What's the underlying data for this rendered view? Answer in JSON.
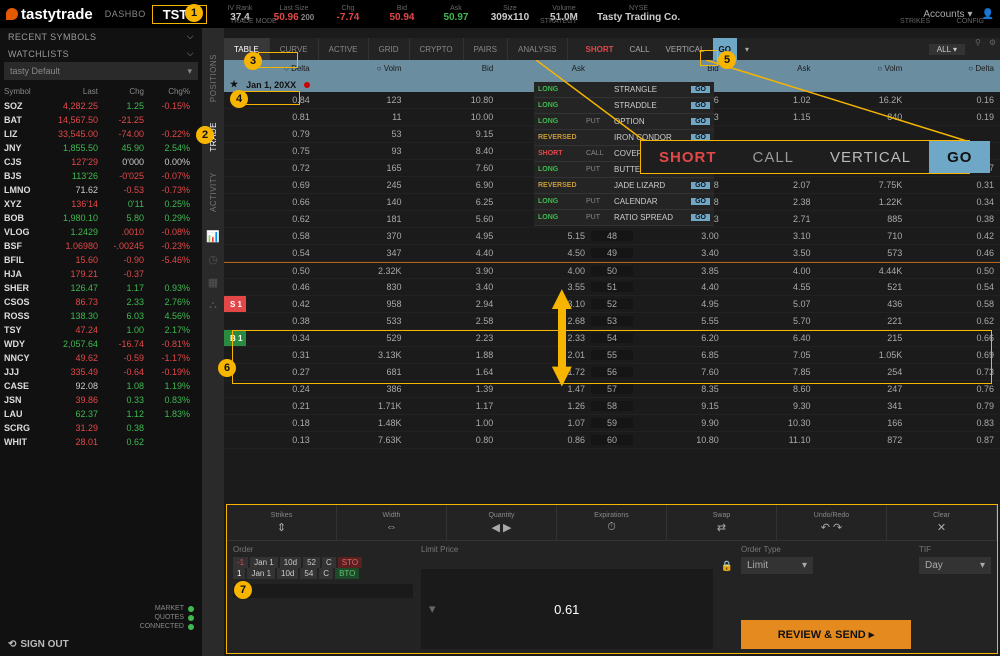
{
  "colors": {
    "accent": "#f7b500",
    "bg": "#0c0c0c",
    "red": "#e34848",
    "green": "#3fb950",
    "go": "#6fa7c7",
    "review": "#e58a1f"
  },
  "header": {
    "brand": "tastytrade",
    "nav": "DASHBO",
    "ticker": "TSTY",
    "quotes": [
      {
        "l": "IV Rank",
        "v": "37.4",
        "c": ""
      },
      {
        "l": "Last Size",
        "v": "50.96",
        "c": "red",
        "extra": "200"
      },
      {
        "l": "Chg",
        "v": "-7.74",
        "c": "red"
      },
      {
        "l": "Bid",
        "v": "50.94",
        "c": "red"
      },
      {
        "l": "Ask",
        "v": "50.97",
        "c": "green"
      },
      {
        "l": "Size",
        "v": "309x110",
        "c": ""
      },
      {
        "l": "Volume",
        "v": "51.0M",
        "c": ""
      },
      {
        "l": "NYSE",
        "v": "Tasty Trading Co.",
        "c": ""
      }
    ],
    "accounts": "Accounts"
  },
  "sidebar": {
    "recent": "RECENT SYMBOLS",
    "watchlists": "WATCHLISTS",
    "wl_select": "tasty Default",
    "cols": [
      "Symbol",
      "Last",
      "Chg",
      "Chg%"
    ],
    "rows": [
      {
        "s": "SOZ",
        "l": "4,282.25",
        "lc": "red",
        "c": "1.25",
        "cc": "green",
        "p": "-0.15%",
        "pc": "red"
      },
      {
        "s": "BAT",
        "l": "14,567.50",
        "lc": "red",
        "c": "-21.25",
        "cc": "red",
        "p": "",
        "pc": ""
      },
      {
        "s": "LIZ",
        "l": "33,545.00",
        "lc": "red",
        "c": "-74.00",
        "cc": "red",
        "p": "-0.22%",
        "pc": "red"
      },
      {
        "s": "JNY",
        "l": "1,855.50",
        "lc": "green",
        "c": "45.90",
        "cc": "green",
        "p": "2.54%",
        "pc": "green"
      },
      {
        "s": "CJS",
        "l": "127'29",
        "lc": "red",
        "c": "0'000",
        "cc": "",
        "p": "0.00%",
        "pc": ""
      },
      {
        "s": "BJS",
        "l": "113'26",
        "lc": "green",
        "c": "-0'025",
        "cc": "red",
        "p": "-0.07%",
        "pc": "red"
      },
      {
        "s": "LMNO",
        "l": "71.62",
        "lc": "",
        "c": "-0.53",
        "cc": "red",
        "p": "-0.73%",
        "pc": "red"
      },
      {
        "s": "XYZ",
        "l": "136'14",
        "lc": "red",
        "c": "0'11",
        "cc": "green",
        "p": "0.25%",
        "pc": "green"
      },
      {
        "s": "BOB",
        "l": "1,980.10",
        "lc": "green",
        "c": "5.80",
        "cc": "green",
        "p": "0.29%",
        "pc": "green"
      },
      {
        "s": "VLOG",
        "l": "1.2429",
        "lc": "green",
        "c": ".0010",
        "cc": "red",
        "p": "-0.08%",
        "pc": "red"
      },
      {
        "s": "BSF",
        "l": "1.06980",
        "lc": "red",
        "c": "-.00245",
        "cc": "red",
        "p": "-0.23%",
        "pc": "red"
      },
      {
        "s": "BFIL",
        "l": "15.60",
        "lc": "red",
        "c": "-0.90",
        "cc": "red",
        "p": "-5.46%",
        "pc": "red"
      },
      {
        "s": "HJA",
        "l": "179.21",
        "lc": "red",
        "c": "-0.37",
        "cc": "red",
        "p": "",
        "pc": ""
      },
      {
        "s": "SHER",
        "l": "126.47",
        "lc": "green",
        "c": "1.17",
        "cc": "green",
        "p": "0.93%",
        "pc": "green"
      },
      {
        "s": "CSOS",
        "l": "86.73",
        "lc": "red",
        "c": "2.33",
        "cc": "green",
        "p": "2.76%",
        "pc": "green"
      },
      {
        "s": "ROSS",
        "l": "138.30",
        "lc": "green",
        "c": "6.03",
        "cc": "green",
        "p": "4.56%",
        "pc": "green"
      },
      {
        "s": "TSY",
        "l": "47.24",
        "lc": "red",
        "c": "1.00",
        "cc": "green",
        "p": "2.17%",
        "pc": "green"
      },
      {
        "s": "WDY",
        "l": "2,057.64",
        "lc": "green",
        "c": "-16.74",
        "cc": "red",
        "p": "-0.81%",
        "pc": "red"
      },
      {
        "s": "NNCY",
        "l": "49.62",
        "lc": "red",
        "c": "-0.59",
        "cc": "red",
        "p": "-1.17%",
        "pc": "red"
      },
      {
        "s": "JJJ",
        "l": "335.49",
        "lc": "red",
        "c": "-0.64",
        "cc": "red",
        "p": "-0.19%",
        "pc": "red"
      },
      {
        "s": "CASE",
        "l": "92.08",
        "lc": "",
        "c": "1.08",
        "cc": "green",
        "p": "1.19%",
        "pc": "green"
      },
      {
        "s": "JSN",
        "l": "39.86",
        "lc": "red",
        "c": "0.33",
        "cc": "green",
        "p": "0.83%",
        "pc": "green"
      },
      {
        "s": "LAU",
        "l": "62.37",
        "lc": "green",
        "c": "1.12",
        "cc": "green",
        "p": "1.83%",
        "pc": "green"
      },
      {
        "s": "SCRG",
        "l": "31.29",
        "lc": "red",
        "c": "0.38",
        "cc": "green",
        "p": "",
        "pc": ""
      },
      {
        "s": "WHIT",
        "l": "28.01",
        "lc": "red",
        "c": "0.62",
        "cc": "green",
        "p": "",
        "pc": ""
      }
    ],
    "status": [
      "MARKET",
      "QUOTES",
      "CONNECTED"
    ],
    "signout": "SIGN OUT"
  },
  "rail": {
    "tabs": [
      "POSITIONS",
      "TRADE",
      "ACTIVITY"
    ],
    "active": 1
  },
  "modes": {
    "lbl": "TRADE MODE",
    "tabs": [
      "TABLE",
      "CURVE",
      "ACTIVE",
      "GRID",
      "CRYPTO",
      "PAIRS",
      "ANALYSIS"
    ],
    "sel": 0,
    "strat_lbl": "STRATEGY",
    "strat": [
      "SHORT",
      "CALL",
      "VERTICAL"
    ],
    "go": "GO",
    "strikes_lbl": "STRIKES",
    "strikes_val": "ALL",
    "config": "CONFIG"
  },
  "opt_head_left": [
    "○ Delta",
    "○ Volm",
    "Bid",
    "Ask"
  ],
  "opt_head_right": [
    "Bid",
    "Ask",
    "○ Volm",
    "○ Delta"
  ],
  "exp_date": "Jan 1, 20XX",
  "chain": [
    {
      "d": "0.84",
      "v": "123",
      "b": "10.80",
      "a": "",
      "k": "",
      "rb": "0.96",
      "ra": "1.02",
      "rv": "16.2K",
      "rd": "0.16"
    },
    {
      "d": "0.81",
      "v": "11",
      "b": "10.00",
      "a": "",
      "k": "",
      "rb": "1.13",
      "ra": "1.15",
      "rv": "840",
      "rd": "0.19"
    },
    {
      "d": "0.79",
      "v": "53",
      "b": "9.15",
      "a": "",
      "k": "",
      "rb": "",
      "ra": "",
      "rv": "",
      "rd": ""
    },
    {
      "d": "0.75",
      "v": "93",
      "b": "8.40",
      "a": "",
      "k": "",
      "rb": "",
      "ra": "",
      "rv": "",
      "rd": ""
    },
    {
      "d": "0.72",
      "v": "165",
      "b": "7.60",
      "a": "",
      "k": "",
      "rb": "1.75",
      "ra": "1.78",
      "rv": "1.13K",
      "rd": "0.27"
    },
    {
      "d": "0.69",
      "v": "245",
      "b": "6.90",
      "a": "",
      "k": "",
      "rb": "1.98",
      "ra": "2.07",
      "rv": "7.75K",
      "rd": "0.31"
    },
    {
      "d": "0.66",
      "v": "140",
      "b": "6.25",
      "a": "",
      "k": "",
      "rb": "2.28",
      "ra": "2.38",
      "rv": "1.22K",
      "rd": "0.34"
    },
    {
      "d": "0.62",
      "v": "181",
      "b": "5.60",
      "a": "5.75",
      "k": "47",
      "rb": "2.63",
      "ra": "2.71",
      "rv": "885",
      "rd": "0.38"
    },
    {
      "d": "0.58",
      "v": "370",
      "b": "4.95",
      "a": "5.15",
      "k": "48",
      "rb": "3.00",
      "ra": "3.10",
      "rv": "710",
      "rd": "0.42"
    },
    {
      "d": "0.54",
      "v": "347",
      "b": "4.40",
      "a": "4.50",
      "k": "49",
      "rb": "3.40",
      "ra": "3.50",
      "rv": "573",
      "rd": "0.46"
    },
    {
      "d": "0.50",
      "v": "2.32K",
      "b": "3.90",
      "a": "4.00",
      "k": "50",
      "rb": "3.85",
      "ra": "4.00",
      "rv": "4.44K",
      "rd": "0.50",
      "atm": true
    },
    {
      "d": "0.46",
      "v": "830",
      "b": "3.40",
      "a": "3.55",
      "k": "51",
      "rb": "4.40",
      "ra": "4.55",
      "rv": "521",
      "rd": "0.54"
    },
    {
      "d": "0.42",
      "v": "958",
      "b": "2.94",
      "a": "3.10",
      "k": "52",
      "rb": "4.95",
      "ra": "5.07",
      "rv": "436",
      "rd": "0.58",
      "s": true
    },
    {
      "d": "0.38",
      "v": "533",
      "b": "2.58",
      "a": "2.68",
      "k": "53",
      "rb": "5.55",
      "ra": "5.70",
      "rv": "221",
      "rd": "0.62"
    },
    {
      "d": "0.34",
      "v": "529",
      "b": "2.23",
      "a": "2.33",
      "k": "54",
      "rb": "6.20",
      "ra": "6.40",
      "rv": "215",
      "rd": "0.66",
      "buy": true
    },
    {
      "d": "0.31",
      "v": "3.13K",
      "b": "1.88",
      "a": "2.01",
      "k": "55",
      "rb": "6.85",
      "ra": "7.05",
      "rv": "1.05K",
      "rd": "0.69"
    },
    {
      "d": "0.27",
      "v": "681",
      "b": "1.64",
      "a": "1.72",
      "k": "56",
      "rb": "7.60",
      "ra": "7.85",
      "rv": "254",
      "rd": "0.73"
    },
    {
      "d": "0.24",
      "v": "386",
      "b": "1.39",
      "a": "1.47",
      "k": "57",
      "rb": "8.35",
      "ra": "8.60",
      "rv": "247",
      "rd": "0.76"
    },
    {
      "d": "0.21",
      "v": "1.71K",
      "b": "1.17",
      "a": "1.26",
      "k": "58",
      "rb": "9.15",
      "ra": "9.30",
      "rv": "341",
      "rd": "0.79"
    },
    {
      "d": "0.18",
      "v": "1.48K",
      "b": "1.00",
      "a": "1.07",
      "k": "59",
      "rb": "9.90",
      "ra": "10.30",
      "rv": "166",
      "rd": "0.83"
    },
    {
      "d": "0.13",
      "v": "7.63K",
      "b": "0.80",
      "a": "0.86",
      "k": "60",
      "rb": "10.80",
      "ra": "11.10",
      "rv": "872",
      "rd": "0.87"
    }
  ],
  "s_tag": "S 1",
  "b_tag": "B 1",
  "strat_menu": [
    {
      "t": "LONG",
      "tc": "s-long",
      "s": "",
      "n": "STRANGLE"
    },
    {
      "t": "LONG",
      "tc": "s-long",
      "s": "",
      "n": "STRADDLE"
    },
    {
      "t": "LONG",
      "tc": "s-long",
      "s": "PUT",
      "n": "OPTION"
    },
    {
      "t": "REVERSED",
      "tc": "s-rev",
      "s": "",
      "n": "IRON CONDOR"
    },
    {
      "t": "SHORT",
      "tc": "s-short",
      "s": "CALL",
      "n": "COVERED"
    },
    {
      "t": "LONG",
      "tc": "s-long",
      "s": "PUT",
      "n": "BUTTER"
    },
    {
      "t": "REVERSED",
      "tc": "s-rev",
      "s": "",
      "n": "JADE LIZARD"
    },
    {
      "t": "LONG",
      "tc": "s-long",
      "s": "PUT",
      "n": "CALENDAR"
    },
    {
      "t": "LONG",
      "tc": "s-long",
      "s": "PUT",
      "n": "RATIO SPREAD"
    }
  ],
  "panel": {
    "tools": [
      "Strikes",
      "Width",
      "Quantity",
      "Expirations",
      "Swap",
      "Undo/Redo",
      "Clear"
    ],
    "order_lbl": "Order",
    "legs": [
      {
        "q": "-1",
        "exp": "Jan 1",
        "dte": "10d",
        "k": "52",
        "cp": "C",
        "act": "STO",
        "ac": "leg-sto"
      },
      {
        "q": "1",
        "exp": "Jan 1",
        "dte": "10d",
        "k": "54",
        "cp": "C",
        "act": "BTO",
        "ac": "leg-bto"
      }
    ],
    "limit_lbl": "Limit Price",
    "limit_val": "0.61",
    "ordertype_lbl": "Order Type",
    "ordertype_val": "Limit",
    "tif_lbl": "TIF",
    "tif_val": "Day",
    "review": "REVIEW & SEND"
  },
  "mag": {
    "short": "SHORT",
    "call": "CALL",
    "vert": "VERTICAL",
    "go": "GO"
  },
  "markers": {
    "1": "1",
    "2": "2",
    "3": "3",
    "4": "4",
    "5": "5",
    "6": "6",
    "7": "7"
  }
}
